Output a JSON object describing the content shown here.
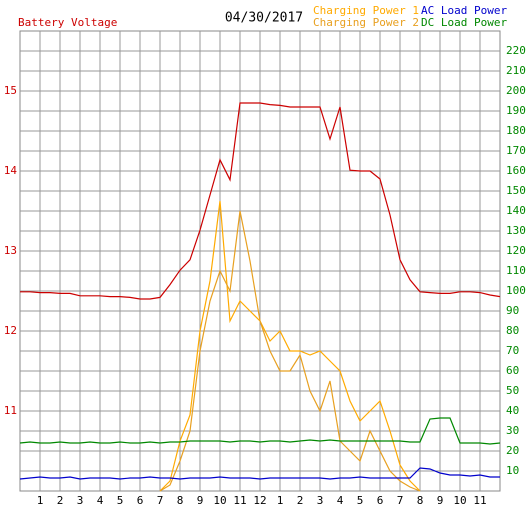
{
  "chart_data": {
    "type": "line",
    "title": "04/30/2017",
    "ylabel": "Battery Voltage",
    "x": [
      0,
      0.5,
      1,
      1.5,
      2,
      2.5,
      3,
      3.5,
      4,
      4.5,
      5,
      5.5,
      6,
      6.5,
      7,
      7.5,
      8,
      8.5,
      9,
      9.5,
      10,
      10.5,
      11,
      11.5,
      12,
      12.5,
      13,
      13.5,
      14,
      14.5,
      15,
      15.5,
      16,
      16.5,
      17,
      17.5,
      18,
      18.5,
      19,
      19.5,
      20,
      20.5,
      21,
      21.5,
      22,
      22.5,
      23,
      23.5,
      24
    ],
    "xlim": [
      0,
      24
    ],
    "xticks": [
      1,
      2,
      3,
      4,
      5,
      6,
      7,
      8,
      9,
      10,
      11,
      12,
      {
        "value": 13,
        "label": "1"
      },
      {
        "value": 14,
        "label": "2"
      },
      {
        "value": 15,
        "label": "3"
      },
      {
        "value": 16,
        "label": "4"
      },
      {
        "value": 17,
        "label": "5"
      },
      {
        "value": 18,
        "label": "6"
      },
      {
        "value": 19,
        "label": "7"
      },
      {
        "value": 20,
        "label": "8"
      },
      {
        "value": 21,
        "label": "9"
      },
      {
        "value": 22,
        "label": "10"
      },
      {
        "value": 23,
        "label": "11"
      }
    ],
    "ylim": [
      10,
      15.75
    ],
    "yticks": [
      11,
      12,
      13,
      14,
      15
    ],
    "y2lim": [
      0,
      230
    ],
    "y2ticks": [
      10,
      20,
      30,
      40,
      50,
      60,
      70,
      80,
      90,
      100,
      110,
      120,
      130,
      140,
      150,
      160,
      170,
      180,
      190,
      200,
      210,
      220
    ],
    "grid": true,
    "series": [
      {
        "name": "Battery Voltage",
        "color": "#cc0000",
        "values": [
          12.49,
          12.49,
          12.48,
          12.48,
          12.47,
          12.47,
          12.44,
          12.44,
          12.44,
          12.43,
          12.43,
          12.42,
          12.4,
          12.4,
          12.42,
          12.58,
          12.76,
          12.89,
          13.26,
          13.7,
          14.14,
          13.89,
          14.85,
          14.85,
          14.85,
          14.83,
          14.82,
          14.8,
          14.8,
          14.8,
          14.8,
          14.4,
          14.8,
          14.01,
          14.0,
          14.0,
          13.9,
          13.45,
          12.89,
          12.64,
          12.49,
          12.48,
          12.47,
          12.47,
          12.49,
          12.49,
          12.48,
          12.45,
          12.43
        ]
      },
      {
        "name": "Charging Power 1",
        "color": "#ffaa00",
        "axis": "y2",
        "values": [
          null,
          null,
          null,
          null,
          null,
          null,
          null,
          null,
          null,
          null,
          null,
          null,
          null,
          null,
          0,
          5,
          25,
          38,
          80,
          105,
          145,
          85,
          95,
          90,
          85,
          75,
          80,
          70,
          70,
          68,
          70,
          65,
          60,
          45,
          35,
          40,
          45,
          30,
          13,
          5,
          0,
          null,
          null,
          null,
          null,
          null,
          null,
          null,
          null
        ]
      },
      {
        "name": "Charging Power 2",
        "color": "#e8a020",
        "axis": "y2",
        "values": [
          null,
          null,
          null,
          null,
          null,
          null,
          null,
          null,
          null,
          null,
          null,
          null,
          null,
          null,
          0,
          3,
          15,
          30,
          70,
          95,
          110,
          100,
          140,
          115,
          85,
          70,
          60,
          60,
          68,
          50,
          40,
          55,
          25,
          20,
          15,
          30,
          20,
          10,
          5,
          2,
          0,
          null,
          null,
          null,
          null,
          null,
          null,
          null,
          null
        ]
      },
      {
        "name": "AC Load Power",
        "color": "#0000cc",
        "axis": "y2",
        "values": [
          6,
          6.5,
          7,
          6.5,
          6.5,
          7,
          6,
          6.5,
          6.5,
          6.5,
          6,
          6.5,
          6.5,
          7,
          6.5,
          6.5,
          6,
          6.5,
          6.5,
          6.5,
          7,
          6.5,
          6.5,
          6.5,
          6,
          6.5,
          6.5,
          6.5,
          6.5,
          6.5,
          6.5,
          6,
          6.5,
          6.5,
          7,
          6.5,
          6.5,
          6.5,
          6.5,
          6.5,
          11.5,
          11,
          9,
          8,
          8,
          7.5,
          8,
          7,
          7
        ]
      },
      {
        "name": "DC Load Power",
        "color": "#008800",
        "axis": "y2",
        "values": [
          24,
          24.5,
          24,
          24,
          24.5,
          24,
          24,
          24.5,
          24,
          24,
          24.5,
          24,
          24,
          24.5,
          24,
          24.5,
          24.5,
          25,
          25,
          25,
          25,
          24.5,
          25,
          25,
          24.5,
          25,
          25,
          24.5,
          25,
          25.5,
          25,
          25.5,
          25,
          25,
          25,
          25,
          25,
          25,
          25,
          24.5,
          24.5,
          36,
          36.5,
          36.5,
          24,
          24,
          24,
          23.5,
          24
        ]
      }
    ]
  }
}
